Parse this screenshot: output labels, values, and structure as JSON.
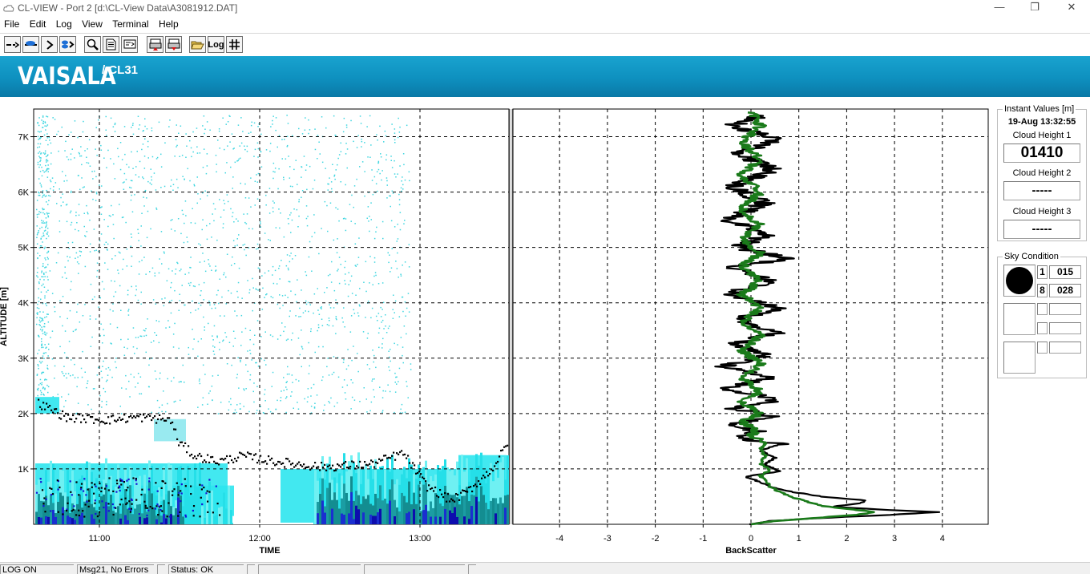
{
  "window": {
    "title": "CL-VIEW - Port 2  [d:\\CL-View Data\\A3081912.DAT]",
    "controls": [
      "—",
      "❐",
      "✕"
    ]
  },
  "menu": [
    "File",
    "Edit",
    "Log",
    "View",
    "Terminal",
    "Help"
  ],
  "toolbar": {
    "buttons": [
      "data-line-icon",
      "cloud-line-icon",
      "chevron-right-icon",
      "cloud-arrow-icon",
      "zoom-icon",
      "document-icon",
      "message-icon",
      "printer-up-icon",
      "printer-down-icon",
      "open-folder-icon",
      "log-icon",
      "grid-icon"
    ],
    "log_label": "Log"
  },
  "banner": {
    "brand": "VAISALA",
    "model": "/ CL31"
  },
  "time_plot": {
    "ylabel": "ALTITUDE [m]",
    "xlabel": "TIME",
    "y_ticks": [
      "1K",
      "2K",
      "3K",
      "4K",
      "5K",
      "6K",
      "7K"
    ],
    "x_ticks": [
      "11:00",
      "12:00",
      "13:00"
    ]
  },
  "chart_data": {
    "type": "line",
    "title": "",
    "xlabel": "BackScatter",
    "ylabel": "",
    "xlim": [
      -5,
      5
    ],
    "ylim": [
      0,
      7500
    ],
    "x_ticks": [
      "-4",
      "-3",
      "-2",
      "-1",
      "0",
      "1",
      "2",
      "3",
      "4"
    ],
    "series": [
      {
        "color": "#000000",
        "points": [
          [
            0.0,
            0
          ],
          [
            0.4,
            60
          ],
          [
            1.4,
            110
          ],
          [
            2.9,
            170
          ],
          [
            3.9,
            220
          ],
          [
            2.6,
            270
          ],
          [
            1.7,
            320
          ],
          [
            2.3,
            380
          ],
          [
            2.4,
            430
          ],
          [
            1.5,
            500
          ],
          [
            0.9,
            580
          ],
          [
            0.4,
            680
          ],
          [
            0.2,
            760
          ],
          [
            -0.1,
            860
          ],
          [
            0.6,
            960
          ],
          [
            0.3,
            1080
          ],
          [
            0.5,
            1200
          ],
          [
            0.2,
            1330
          ],
          [
            0.6,
            1450
          ],
          [
            -0.3,
            1560
          ],
          [
            0.1,
            1680
          ],
          [
            -0.5,
            1800
          ],
          [
            0.5,
            1950
          ],
          [
            -0.4,
            2100
          ],
          [
            0.6,
            2250
          ],
          [
            -0.5,
            2450
          ],
          [
            0.4,
            2650
          ],
          [
            -0.6,
            2850
          ],
          [
            0.3,
            3050
          ],
          [
            -0.4,
            3250
          ],
          [
            0.5,
            3450
          ],
          [
            -0.3,
            3700
          ],
          [
            0.6,
            3900
          ],
          [
            -0.5,
            4150
          ],
          [
            0.4,
            4400
          ],
          [
            -0.4,
            4650
          ],
          [
            0.8,
            4800
          ],
          [
            -0.3,
            5000
          ],
          [
            0.4,
            5250
          ],
          [
            -0.5,
            5500
          ],
          [
            0.3,
            5800
          ],
          [
            -0.4,
            6100
          ],
          [
            0.5,
            6400
          ],
          [
            -0.3,
            6700
          ],
          [
            0.6,
            6950
          ],
          [
            -0.4,
            7200
          ],
          [
            0.3,
            7400
          ]
        ]
      },
      {
        "color": "#1a7a1a",
        "points": [
          [
            0.0,
            0
          ],
          [
            0.5,
            60
          ],
          [
            1.3,
            110
          ],
          [
            2.2,
            170
          ],
          [
            2.6,
            220
          ],
          [
            2.1,
            270
          ],
          [
            1.5,
            330
          ],
          [
            1.2,
            400
          ],
          [
            0.9,
            480
          ],
          [
            0.6,
            580
          ],
          [
            0.4,
            680
          ],
          [
            0.3,
            780
          ],
          [
            0.2,
            880
          ],
          [
            0.4,
            980
          ],
          [
            0.2,
            1100
          ],
          [
            0.3,
            1230
          ],
          [
            0.2,
            1360
          ],
          [
            0.3,
            1480
          ],
          [
            0.0,
            1600
          ],
          [
            0.1,
            1720
          ],
          [
            -0.2,
            1850
          ],
          [
            0.2,
            2000
          ],
          [
            -0.2,
            2200
          ],
          [
            0.2,
            2400
          ],
          [
            -0.2,
            2650
          ],
          [
            0.2,
            2900
          ],
          [
            -0.2,
            3150
          ],
          [
            0.2,
            3400
          ],
          [
            -0.2,
            3650
          ],
          [
            0.2,
            3900
          ],
          [
            -0.2,
            4150
          ],
          [
            0.2,
            4400
          ],
          [
            -0.2,
            4650
          ],
          [
            0.2,
            4900
          ],
          [
            -0.2,
            5150
          ],
          [
            0.2,
            5400
          ],
          [
            -0.2,
            5700
          ],
          [
            0.2,
            6000
          ],
          [
            -0.2,
            6300
          ],
          [
            0.2,
            6600
          ],
          [
            -0.2,
            6900
          ],
          [
            0.2,
            7200
          ],
          [
            0.0,
            7450
          ]
        ]
      }
    ],
    "grid": true
  },
  "instant_values": {
    "legend": "Instant Values [m]",
    "timestamp": "19-Aug 13:32:55",
    "cloud_height_1_label": "Cloud Height 1",
    "cloud_height_1": "01410",
    "cloud_height_2_label": "Cloud Height 2",
    "cloud_height_2": "-----",
    "cloud_height_3_label": "Cloud Height 3",
    "cloud_height_3": "-----"
  },
  "sky_condition": {
    "legend": "Sky Condition",
    "rows": [
      {
        "n": "1",
        "h": "015"
      },
      {
        "n": "8",
        "h": "028"
      }
    ]
  },
  "status_bar": {
    "log": "LOG ON",
    "message": "Msg21, No Errors",
    "status": "Status: OK"
  }
}
